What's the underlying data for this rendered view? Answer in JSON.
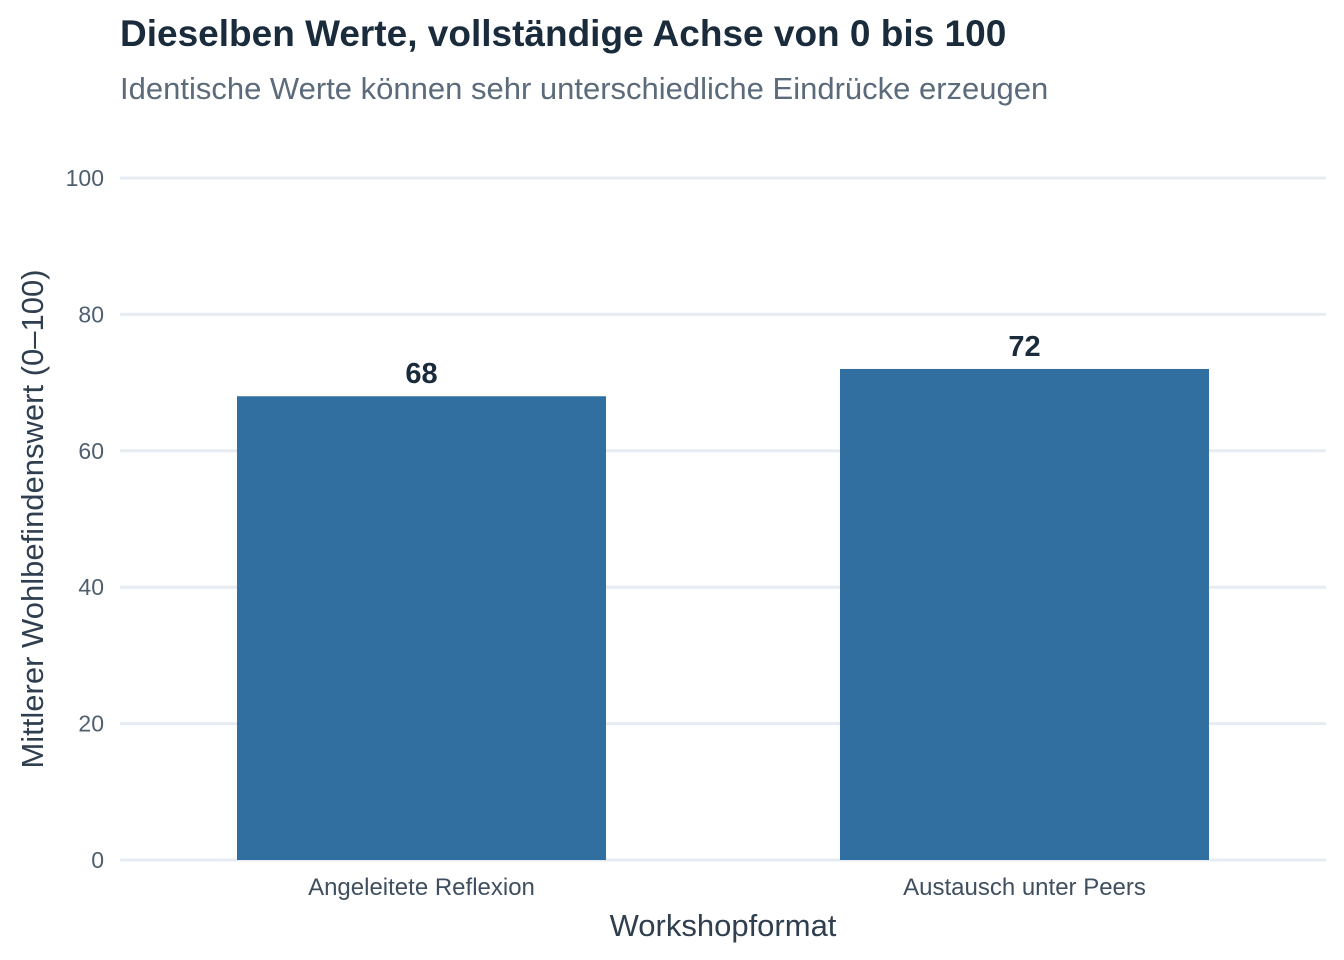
{
  "chart_data": {
    "type": "bar",
    "title": "Dieselben Werte, vollständige Achse von 0 bis 100",
    "subtitle": "Identische Werte können sehr unterschiedliche Eindrücke erzeugen",
    "xlabel": "Workshopformat",
    "ylabel": "Mittlerer Wohlbefindenswert (0–100)",
    "categories": [
      "Angeleitete Reflexion",
      "Austausch unter Peers"
    ],
    "values": [
      68,
      72
    ],
    "data_labels": [
      "68",
      "72"
    ],
    "ylim": [
      0,
      100
    ],
    "yticks": [
      0,
      20,
      40,
      60,
      80,
      100
    ],
    "ytick_labels": [
      "0",
      "20",
      "40",
      "60",
      "80",
      "100"
    ],
    "grid": true,
    "legend": "none",
    "colors": {
      "bar": "#306f9f",
      "grid": "#e6ecf1",
      "title": "#1a2b3c",
      "subtitle": "#5b6b7b"
    }
  }
}
